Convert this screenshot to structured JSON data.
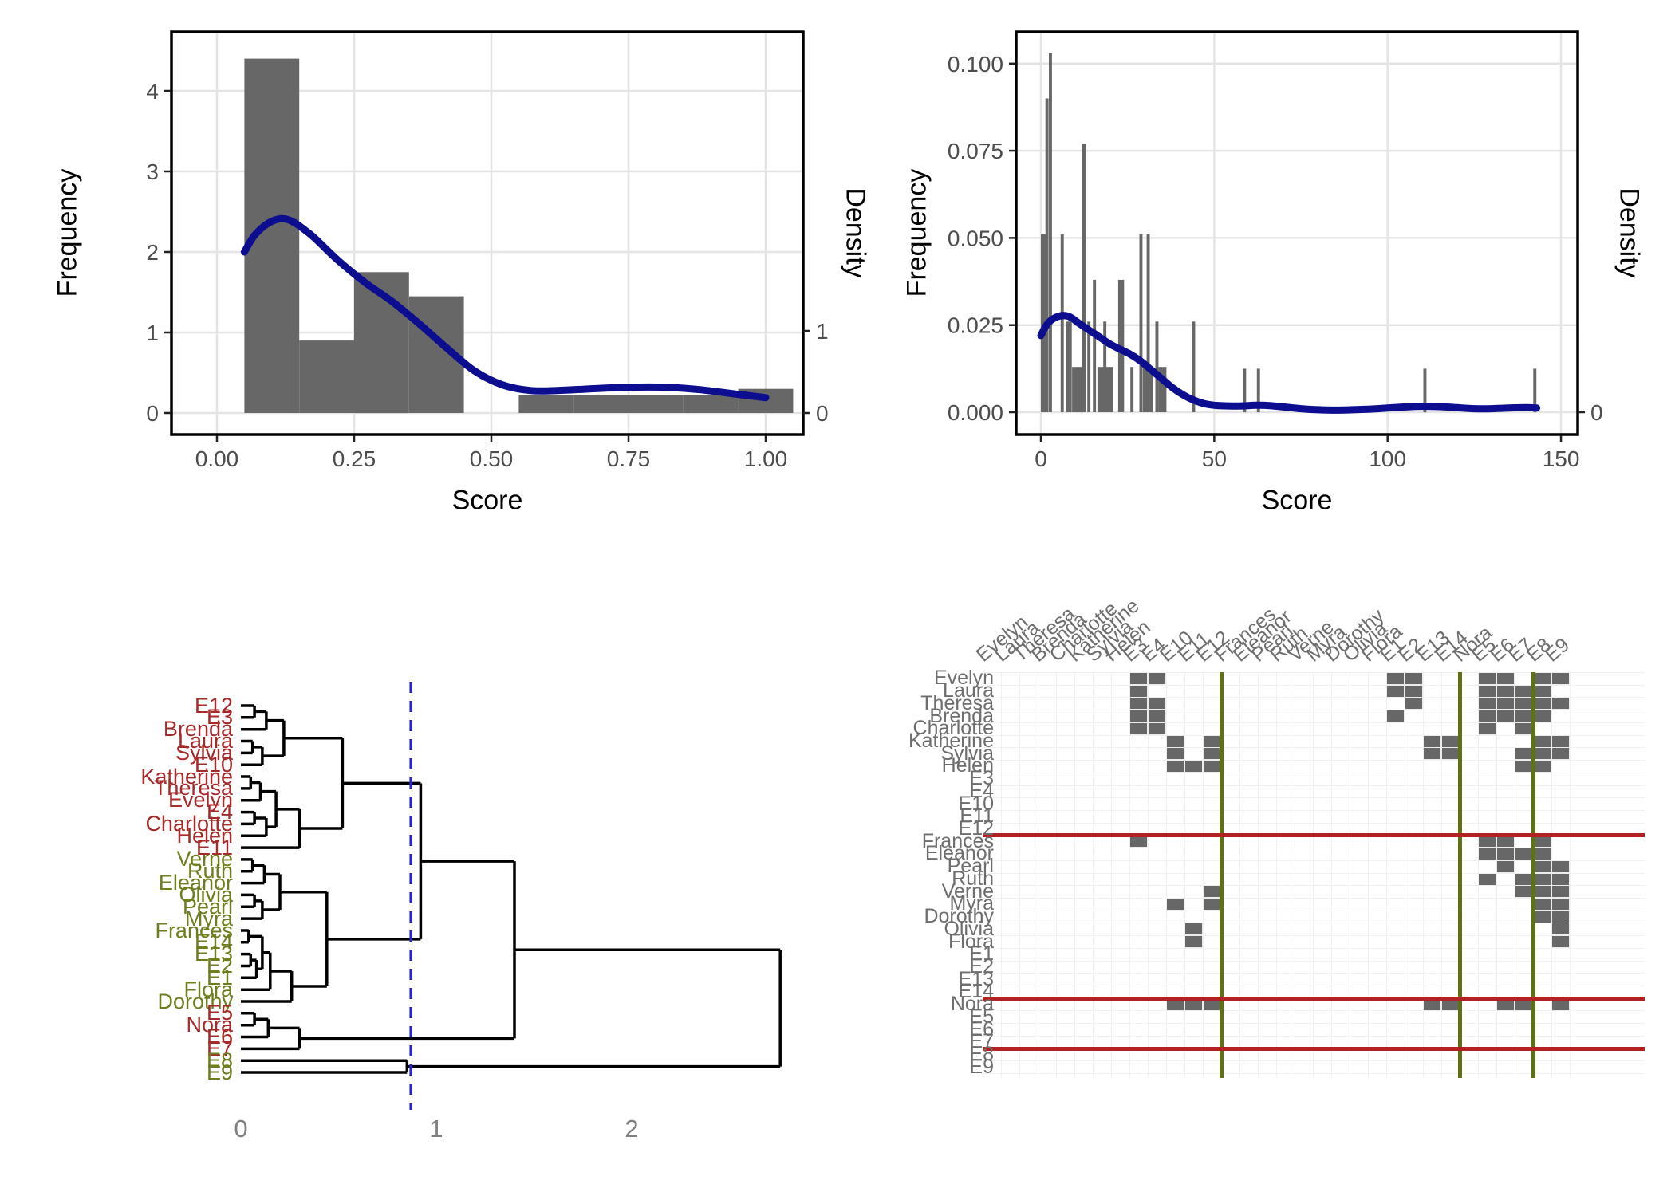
{
  "colors": {
    "bar_gray": "#676767",
    "curve_blue": "#0D0D8F",
    "cut_line_blue": "#2727CC",
    "grid_gray": "#E4E4E4",
    "tick_text": "#4D4D4D",
    "cluster_red_label": "#A52A2A",
    "cluster_olive_label": "#6F7D1F",
    "matrix_red_line": "#B22222",
    "matrix_olive_line": "#5E7114",
    "matrix_label_gray": "#6E6E6E",
    "dendro_axis_gray": "#7E7E7E"
  },
  "chart_data": [
    {
      "id": "histogram-normalized-score",
      "type": "bar",
      "title": "",
      "xlabel": "Score",
      "ylabel": "Frequency",
      "ylabel2": "Density",
      "xlim": [
        -0.08,
        1.1
      ],
      "ylim": [
        -0.27,
        4.73
      ],
      "grid": true,
      "xticks": [
        0,
        0.25,
        0.5,
        0.75,
        1.0
      ],
      "xtick_labels": [
        "0.00",
        "0.25",
        "0.50",
        "0.75",
        "1.00"
      ],
      "yticks": [
        0,
        1,
        2,
        3,
        4
      ],
      "ytick_labels": [
        "0",
        "1",
        "2",
        "3",
        "4"
      ],
      "y2ticks": [
        {
          "label": "0",
          "at": 0
        },
        {
          "label": "1",
          "at": 1.02
        }
      ],
      "bars": [
        [
          0.05,
          0.1,
          4.4
        ],
        [
          0.15,
          0.1,
          0.9
        ],
        [
          0.25,
          0.1,
          1.75
        ],
        [
          0.35,
          0.1,
          1.45
        ],
        [
          0.55,
          0.1,
          0.22
        ],
        [
          0.65,
          0.1,
          0.22
        ],
        [
          0.75,
          0.1,
          0.22
        ],
        [
          0.85,
          0.1,
          0.22
        ],
        [
          0.95,
          0.1,
          0.3
        ]
      ],
      "density_curve": [
        [
          0.05,
          2.0
        ],
        [
          0.07,
          2.22
        ],
        [
          0.1,
          2.38
        ],
        [
          0.13,
          2.4
        ],
        [
          0.17,
          2.22
        ],
        [
          0.22,
          1.9
        ],
        [
          0.27,
          1.62
        ],
        [
          0.32,
          1.38
        ],
        [
          0.37,
          1.1
        ],
        [
          0.42,
          0.8
        ],
        [
          0.47,
          0.52
        ],
        [
          0.52,
          0.35
        ],
        [
          0.57,
          0.28
        ],
        [
          0.62,
          0.28
        ],
        [
          0.68,
          0.3
        ],
        [
          0.75,
          0.32
        ],
        [
          0.82,
          0.32
        ],
        [
          0.88,
          0.29
        ],
        [
          0.94,
          0.24
        ],
        [
          1.0,
          0.19
        ]
      ]
    },
    {
      "id": "histogram-raw-score",
      "type": "bar",
      "title": "",
      "xlabel": "Score",
      "ylabel": "Frequency",
      "ylabel2": "Density",
      "xlim": [
        -7,
        155
      ],
      "ylim": [
        0,
        0.108
      ],
      "grid": true,
      "xticks": [
        0,
        50,
        100,
        150
      ],
      "xtick_labels": [
        "0",
        "50",
        "100",
        "150"
      ],
      "yticks": [
        0,
        0.025,
        0.05,
        0.075,
        0.1
      ],
      "ytick_labels": [
        "0.000",
        "0.025",
        "0.050",
        "0.075",
        "0.100"
      ],
      "y2ticks": [
        {
          "label": "0",
          "at": 0
        }
      ],
      "bars": [
        [
          0,
          2,
          0.051
        ],
        [
          1.3,
          0.9,
          0.09
        ],
        [
          2.3,
          0.9,
          0.103
        ],
        [
          5.7,
          0.9,
          0.051
        ],
        [
          7.3,
          1.6,
          0.026
        ],
        [
          9,
          2.8,
          0.013
        ],
        [
          11.9,
          1.1,
          0.077
        ],
        [
          13.4,
          0.9,
          0.026
        ],
        [
          15,
          0.9,
          0.038
        ],
        [
          16.3,
          4.6,
          0.013
        ],
        [
          18,
          0.9,
          0.026
        ],
        [
          22.3,
          1.7,
          0.038
        ],
        [
          25.8,
          0.9,
          0.013
        ],
        [
          28.4,
          0.9,
          0.051
        ],
        [
          29.4,
          2.9,
          0.013
        ],
        [
          30.5,
          0.9,
          0.051
        ],
        [
          33,
          0.9,
          0.026
        ],
        [
          33.9,
          2.3,
          0.013
        ],
        [
          43.6,
          0.9,
          0.026
        ],
        [
          58.3,
          0.9,
          0.0125
        ],
        [
          62.3,
          0.9,
          0.0125
        ],
        [
          110.3,
          0.9,
          0.0125
        ],
        [
          142,
          0.9,
          0.0125
        ]
      ],
      "density_curve": [
        [
          0,
          0.022
        ],
        [
          2,
          0.0255
        ],
        [
          5,
          0.0275
        ],
        [
          8,
          0.0275
        ],
        [
          11,
          0.0255
        ],
        [
          14,
          0.0235
        ],
        [
          17,
          0.0215
        ],
        [
          20,
          0.0195
        ],
        [
          23,
          0.018
        ],
        [
          26,
          0.0165
        ],
        [
          29,
          0.0145
        ],
        [
          32,
          0.012
        ],
        [
          35,
          0.0095
        ],
        [
          38,
          0.007
        ],
        [
          41,
          0.005
        ],
        [
          44,
          0.0035
        ],
        [
          47,
          0.0025
        ],
        [
          50,
          0.002
        ],
        [
          54,
          0.0018
        ],
        [
          58,
          0.0018
        ],
        [
          62,
          0.002
        ],
        [
          66,
          0.0019
        ],
        [
          70,
          0.0015
        ],
        [
          75,
          0.001
        ],
        [
          80,
          0.0007
        ],
        [
          85,
          0.0006
        ],
        [
          90,
          0.0007
        ],
        [
          95,
          0.0009
        ],
        [
          100,
          0.0012
        ],
        [
          105,
          0.0015
        ],
        [
          110,
          0.0017
        ],
        [
          115,
          0.0016
        ],
        [
          120,
          0.0013
        ],
        [
          125,
          0.001
        ],
        [
          130,
          0.001
        ],
        [
          135,
          0.0012
        ],
        [
          140,
          0.0013
        ],
        [
          143,
          0.0012
        ]
      ]
    },
    {
      "id": "cluster-dendrogram",
      "type": "dendrogram",
      "xticks": [
        0,
        1,
        2
      ],
      "xtick_labels": [
        "0",
        "1",
        "2"
      ],
      "cut_height": 0.87,
      "leaves": [
        [
          "E12",
          "r"
        ],
        [
          "E3",
          "r"
        ],
        [
          "Brenda",
          "r"
        ],
        [
          "Laura",
          "r"
        ],
        [
          "Sylvia",
          "r"
        ],
        [
          "E10",
          "r"
        ],
        [
          "Katherine",
          "r"
        ],
        [
          "Theresa",
          "r"
        ],
        [
          "Evelyn",
          "r"
        ],
        [
          "E4",
          "r"
        ],
        [
          "Charlotte",
          "r"
        ],
        [
          "Helen",
          "r"
        ],
        [
          "E11",
          "r"
        ],
        [
          "Verne",
          "g"
        ],
        [
          "Ruth",
          "g"
        ],
        [
          "Eleanor",
          "g"
        ],
        [
          "Olivia",
          "g"
        ],
        [
          "Pearl",
          "g"
        ],
        [
          "Myra",
          "g"
        ],
        [
          "Frances",
          "g"
        ],
        [
          "E14",
          "g"
        ],
        [
          "E13",
          "g"
        ],
        [
          "E2",
          "g"
        ],
        [
          "E1",
          "g"
        ],
        [
          "Flora",
          "g"
        ],
        [
          "Dorothy",
          "g"
        ],
        [
          "E5",
          "r"
        ],
        [
          "Nora",
          "r"
        ],
        [
          "E6",
          "r"
        ],
        [
          "E7",
          "r"
        ],
        [
          "E8",
          "g"
        ],
        [
          "E9",
          "g"
        ]
      ],
      "tree": [
        "m",
        2.76,
        [
          "m",
          1.4,
          [
            "m",
            0.92,
            [
              "m",
              0.52,
              [
                "m",
                0.22,
                [
                  "m",
                  0.13,
                  [
                    "m",
                    0.07,
                    "E12",
                    "E3"
                  ],
                  "Brenda"
                ],
                [
                  "m",
                  0.11,
                  [
                    "m",
                    0.06,
                    "Laura",
                    "Sylvia"
                  ],
                  "E10"
                ]
              ],
              [
                "m",
                0.3,
                [
                  "m",
                  0.18,
                  [
                    "m",
                    0.1,
                    [
                      "m",
                      0.05,
                      "Katherine",
                      "Theresa"
                    ],
                    "Evelyn"
                  ],
                  [
                    "m",
                    0.13,
                    [
                      "m",
                      0.07,
                      "E4",
                      "Charlotte"
                    ],
                    "Helen"
                  ]
                ],
                "E11"
              ]
            ],
            [
              "m",
              0.44,
              [
                "m",
                0.2,
                [
                  "m",
                  0.12,
                  [
                    "m",
                    0.06,
                    "Verne",
                    "Ruth"
                  ],
                  "Eleanor"
                ],
                [
                  "m",
                  0.11,
                  [
                    "m",
                    0.07,
                    "Olivia",
                    "Pearl"
                  ],
                  "Myra"
                ]
              ],
              [
                "m",
                0.26,
                [
                  "m",
                  0.15,
                  [
                    "m",
                    0.11,
                    [
                      "m",
                      0.04,
                      "Frances",
                      "E14"
                    ],
                    [
                      "m",
                      0.08,
                      [
                        "m",
                        0.05,
                        "E13",
                        "E2"
                      ],
                      "E1"
                    ]
                  ],
                  "Flora"
                ],
                "Dorothy"
              ]
            ]
          ],
          [
            "m",
            0.3,
            [
              "m",
              0.14,
              [
                "m",
                0.07,
                "E5",
                "Nora"
              ],
              "E6"
            ],
            "E7"
          ]
        ],
        [
          "m",
          0.85,
          "E8",
          "E9"
        ]
      ]
    },
    {
      "id": "cluster-adjacency-matrix",
      "type": "heatmap",
      "labels": [
        "Evelyn",
        "Laura",
        "Theresa",
        "Brenda",
        "Charlotte",
        "Katherine",
        "Sylvia",
        "Helen",
        "E3",
        "E4",
        "E10",
        "E11",
        "E12",
        "Frances",
        "Eleanor",
        "Pearl",
        "Ruth",
        "Verne",
        "Myra",
        "Dorothy",
        "Olivia",
        "Flora",
        "E1",
        "E2",
        "E13",
        "E14",
        "Nora",
        "E5",
        "E6",
        "E7",
        "E8",
        "E9"
      ],
      "cluster_boundaries": [
        13,
        26,
        30
      ],
      "women_events": {
        "Evelyn": [
          "E1",
          "E2",
          "E3",
          "E4",
          "E5",
          "E6",
          "E8",
          "E9"
        ],
        "Laura": [
          "E1",
          "E2",
          "E3",
          "E5",
          "E6",
          "E7",
          "E8"
        ],
        "Theresa": [
          "E2",
          "E3",
          "E4",
          "E5",
          "E6",
          "E7",
          "E8",
          "E9"
        ],
        "Brenda": [
          "E1",
          "E3",
          "E4",
          "E5",
          "E6",
          "E7",
          "E8"
        ],
        "Charlotte": [
          "E3",
          "E4",
          "E5",
          "E7"
        ],
        "Frances": [
          "E3",
          "E5",
          "E6",
          "E8"
        ],
        "Eleanor": [
          "E5",
          "E6",
          "E7",
          "E8"
        ],
        "Pearl": [
          "E6",
          "E8",
          "E9"
        ],
        "Ruth": [
          "E5",
          "E7",
          "E8",
          "E9"
        ],
        "Verne": [
          "E7",
          "E8",
          "E9",
          "E12"
        ],
        "Myra": [
          "E8",
          "E9",
          "E10",
          "E12"
        ],
        "Katherine": [
          "E8",
          "E9",
          "E10",
          "E12",
          "E13",
          "E14"
        ],
        "Sylvia": [
          "E7",
          "E8",
          "E9",
          "E10",
          "E12",
          "E13",
          "E14"
        ],
        "Nora": [
          "E6",
          "E7",
          "E9",
          "E10",
          "E11",
          "E12",
          "E13",
          "E14"
        ],
        "Helen": [
          "E7",
          "E8",
          "E10",
          "E11",
          "E12"
        ],
        "Dorothy": [
          "E8",
          "E9"
        ],
        "Olivia": [
          "E9",
          "E11"
        ],
        "Flora": [
          "E9",
          "E11"
        ]
      }
    }
  ]
}
